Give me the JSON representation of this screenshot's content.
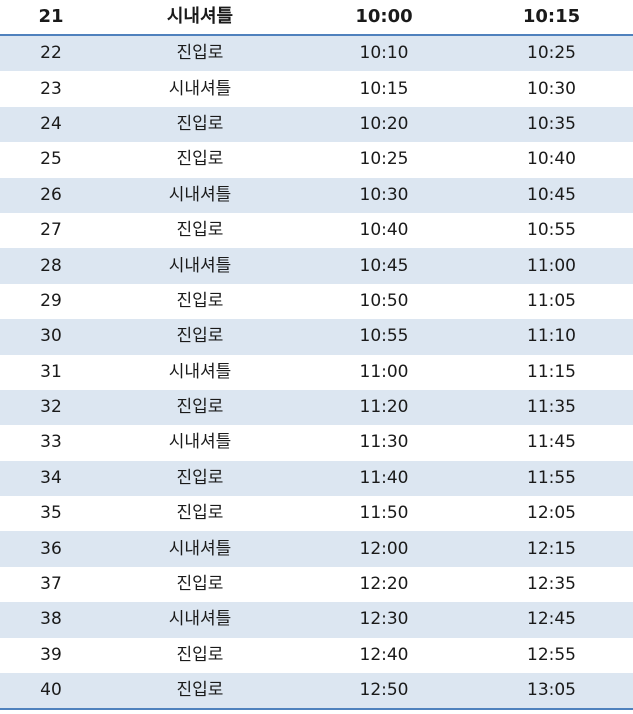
{
  "header": {
    "no": "21",
    "type": "시내셔틀",
    "depart": "10:00",
    "arrive": "10:15"
  },
  "rows": [
    {
      "no": "22",
      "type": "진입로",
      "depart": "10:10",
      "arrive": "10:25"
    },
    {
      "no": "23",
      "type": "시내셔틀",
      "depart": "10:15",
      "arrive": "10:30"
    },
    {
      "no": "24",
      "type": "진입로",
      "depart": "10:20",
      "arrive": "10:35"
    },
    {
      "no": "25",
      "type": "진입로",
      "depart": "10:25",
      "arrive": "10:40"
    },
    {
      "no": "26",
      "type": "시내셔틀",
      "depart": "10:30",
      "arrive": "10:45"
    },
    {
      "no": "27",
      "type": "진입로",
      "depart": "10:40",
      "arrive": "10:55"
    },
    {
      "no": "28",
      "type": "시내셔틀",
      "depart": "10:45",
      "arrive": "11:00"
    },
    {
      "no": "29",
      "type": "진입로",
      "depart": "10:50",
      "arrive": "11:05"
    },
    {
      "no": "30",
      "type": "진입로",
      "depart": "10:55",
      "arrive": "11:10"
    },
    {
      "no": "31",
      "type": "시내셔틀",
      "depart": "11:00",
      "arrive": "11:15"
    },
    {
      "no": "32",
      "type": "진입로",
      "depart": "11:20",
      "arrive": "11:35"
    },
    {
      "no": "33",
      "type": "시내셔틀",
      "depart": "11:30",
      "arrive": "11:45"
    },
    {
      "no": "34",
      "type": "진입로",
      "depart": "11:40",
      "arrive": "11:55"
    },
    {
      "no": "35",
      "type": "진입로",
      "depart": "11:50",
      "arrive": "12:05"
    },
    {
      "no": "36",
      "type": "시내셔틀",
      "depart": "12:00",
      "arrive": "12:15"
    },
    {
      "no": "37",
      "type": "진입로",
      "depart": "12:20",
      "arrive": "12:35"
    },
    {
      "no": "38",
      "type": "시내셔틀",
      "depart": "12:30",
      "arrive": "12:45"
    },
    {
      "no": "39",
      "type": "진입로",
      "depart": "12:40",
      "arrive": "12:55"
    },
    {
      "no": "40",
      "type": "진입로",
      "depart": "12:50",
      "arrive": "13:05"
    }
  ],
  "colors": {
    "stripe": "#dce6f1",
    "rule": "#4f81bd"
  }
}
